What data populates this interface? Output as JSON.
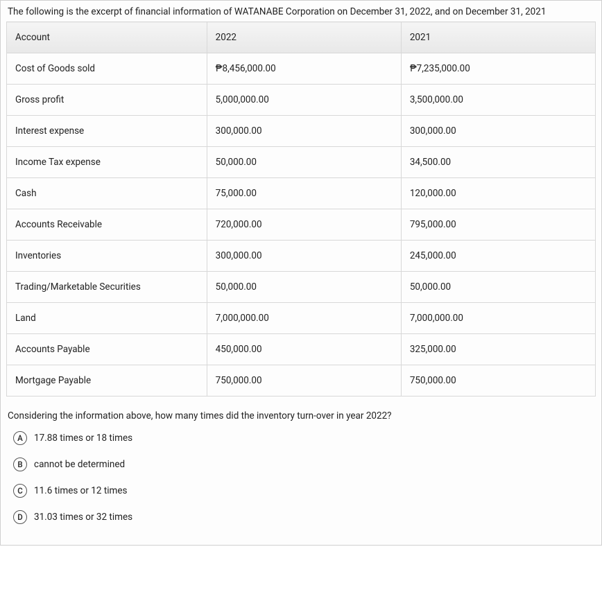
{
  "intro": "The following is the excerpt of financial information of WATANABE Corporation on December 31, 2022, and on December 31, 2021",
  "table": {
    "columns": [
      "Account",
      "2022",
      "2021"
    ],
    "col_widths": [
      "34%",
      "33%",
      "33%"
    ],
    "header_bg_gradient": [
      "#f5f5f5",
      "#e8e8e8"
    ],
    "border_color": "#d8d8d8",
    "font_size": 13.5,
    "rows": [
      {
        "account": "Cost of Goods sold",
        "y2022": "₱8,456,000.00",
        "y2021": "₱7,235,000.00"
      },
      {
        "account": "Gross profit",
        "y2022": "5,000,000.00",
        "y2021": "3,500,000.00"
      },
      {
        "account": "Interest expense",
        "y2022": "300,000.00",
        "y2021": "300,000.00"
      },
      {
        "account": "Income Tax expense",
        "y2022": "50,000.00",
        "y2021": "34,500.00"
      },
      {
        "account": "Cash",
        "y2022": "75,000.00",
        "y2021": "120,000.00"
      },
      {
        "account": "Accounts Receivable",
        "y2022": "720,000.00",
        "y2021": "795,000.00"
      },
      {
        "account": "Inventories",
        "y2022": "300,000.00",
        "y2021": "245,000.00"
      },
      {
        "account": "Trading/Marketable Securities",
        "y2022": "50,000.00",
        "y2021": "50,000.00"
      },
      {
        "account": "Land",
        "y2022": "7,000,000.00",
        "y2021": "7,000,000.00"
      },
      {
        "account": "Accounts Payable",
        "y2022": "450,000.00",
        "y2021": "325,000.00"
      },
      {
        "account": "Mortgage Payable",
        "y2022": "750,000.00",
        "y2021": "750,000.00"
      }
    ]
  },
  "question": "Considering the information above, how many times did the inventory turn-over in year 2022?",
  "options": [
    {
      "letter": "A",
      "text": "17.88 times or 18 times"
    },
    {
      "letter": "B",
      "text": "cannot be determined"
    },
    {
      "letter": "C",
      "text": "11.6 times or 12 times"
    },
    {
      "letter": "D",
      "text": "31.03 times or 32 times"
    }
  ],
  "colors": {
    "text": "#222222",
    "container_border": "#d0d0d0",
    "option_circle_border": "#555555"
  }
}
